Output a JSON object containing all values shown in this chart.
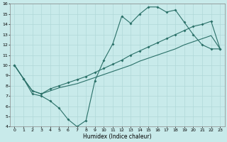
{
  "xlabel": "Humidex (Indice chaleur)",
  "bg_color": "#c8eaea",
  "grid_color": "#b0d8d8",
  "line_color": "#2a7068",
  "xlim": [
    -0.5,
    23.5
  ],
  "ylim": [
    4,
    16
  ],
  "xticks": [
    0,
    1,
    2,
    3,
    4,
    5,
    6,
    7,
    8,
    9,
    10,
    11,
    12,
    13,
    14,
    15,
    16,
    17,
    18,
    19,
    20,
    21,
    22,
    23
  ],
  "yticks": [
    4,
    5,
    6,
    7,
    8,
    9,
    10,
    11,
    12,
    13,
    14,
    15,
    16
  ],
  "curve1_x": [
    0,
    1,
    2,
    3,
    4,
    5,
    6,
    7,
    8,
    9,
    10,
    11,
    12,
    13,
    14,
    15,
    16,
    17,
    18,
    19,
    20,
    21,
    22,
    23
  ],
  "curve1_y": [
    10.0,
    8.7,
    7.2,
    7.0,
    6.5,
    5.8,
    4.7,
    4.0,
    4.6,
    8.5,
    10.5,
    12.1,
    14.8,
    14.1,
    15.0,
    15.7,
    15.7,
    15.2,
    15.4,
    14.2,
    13.0,
    12.0,
    11.6,
    11.6
  ],
  "curve2_x": [
    0,
    1,
    2,
    3,
    4,
    5,
    6,
    7,
    8,
    9,
    10,
    11,
    12,
    13,
    14,
    15,
    16,
    17,
    18,
    19,
    20,
    21,
    22,
    23
  ],
  "curve2_y": [
    10.0,
    8.7,
    7.5,
    7.2,
    7.7,
    8.0,
    8.3,
    8.6,
    8.9,
    9.3,
    9.7,
    10.1,
    10.5,
    11.0,
    11.4,
    11.8,
    12.2,
    12.6,
    13.0,
    13.4,
    13.8,
    14.0,
    14.3,
    11.6
  ],
  "curve3_x": [
    0,
    1,
    2,
    3,
    4,
    5,
    6,
    7,
    8,
    9,
    10,
    11,
    12,
    13,
    14,
    15,
    16,
    17,
    18,
    19,
    20,
    21,
    22,
    23
  ],
  "curve3_y": [
    10.0,
    8.7,
    7.5,
    7.2,
    7.5,
    7.8,
    8.0,
    8.2,
    8.5,
    8.8,
    9.1,
    9.4,
    9.7,
    10.0,
    10.4,
    10.7,
    11.0,
    11.3,
    11.6,
    12.0,
    12.3,
    12.6,
    12.9,
    11.6
  ]
}
